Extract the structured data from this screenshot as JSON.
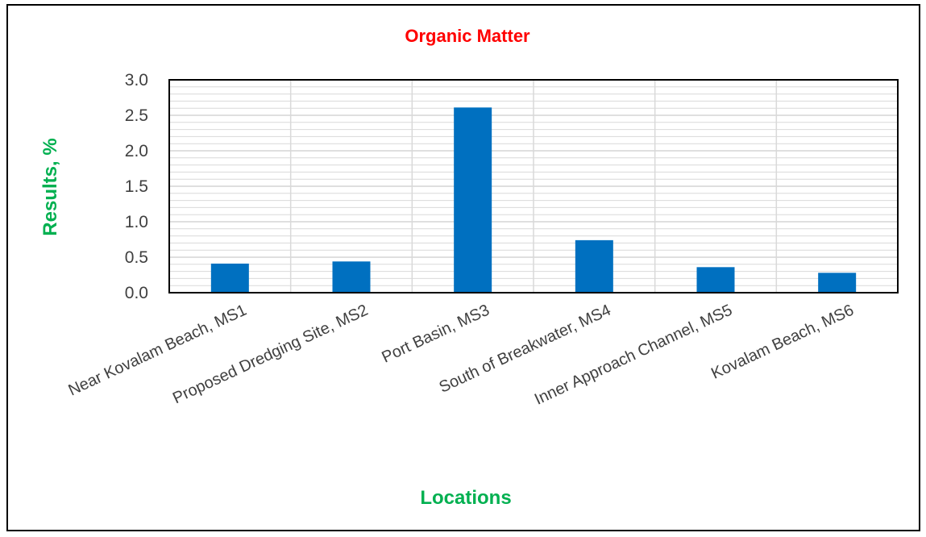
{
  "colors": {
    "bar": "#0070C0",
    "title": "#FF0000",
    "axis_title": "#00B050",
    "tick_text": "#404040",
    "gridline": "#D9D9D9",
    "plot_border": "#000000"
  },
  "chart_data": {
    "type": "bar",
    "title": "Organic Matter",
    "xlabel": "Locations",
    "ylabel": "Results, %",
    "categories": [
      "Near Kovalam Beach, MS1",
      "Proposed Dredging Site, MS2",
      "Port Basin, MS3",
      "South of Breakwater, MS4",
      "Inner Approach Channel, MS5",
      "Kovalam Beach, MS6"
    ],
    "values": [
      0.41,
      0.44,
      2.61,
      0.74,
      0.36,
      0.28
    ],
    "ylim": [
      0,
      3.0
    ],
    "yticks": [
      "0.0",
      "0.5",
      "1.0",
      "1.5",
      "2.0",
      "2.5",
      "3.0"
    ],
    "grid": true,
    "legend": "none"
  }
}
